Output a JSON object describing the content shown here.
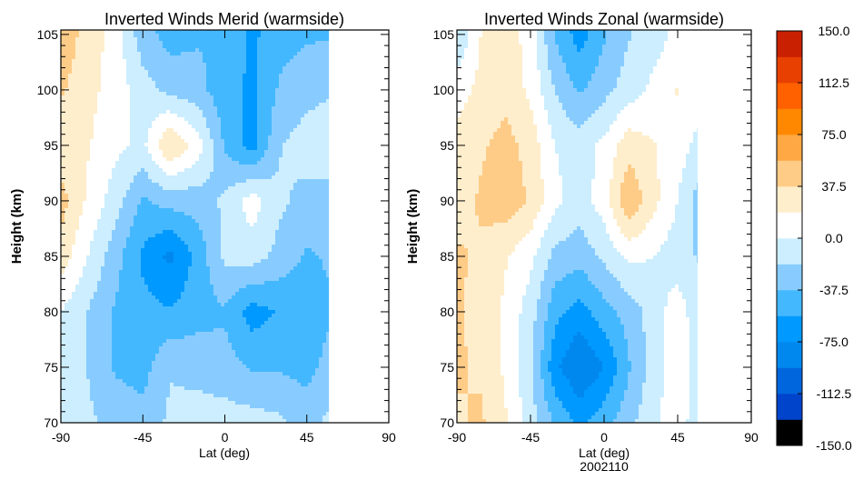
{
  "chart_data": [
    {
      "type": "heatmap",
      "title": "Inverted Winds Merid (warmside)",
      "xlabel": "Lat (deg)",
      "ylabel": "Height (km)",
      "xlim": [
        -90,
        90
      ],
      "ylim": [
        70,
        105.4
      ],
      "xticks": [
        "-90",
        "-45",
        "0",
        "45",
        "90"
      ],
      "yticks": [
        "70",
        "75",
        "80",
        "85",
        "90",
        "95",
        "100",
        "105"
      ],
      "lat": [
        -90,
        -75,
        -60,
        -45,
        -30,
        -15,
        0,
        15,
        30,
        45,
        57
      ],
      "height": [
        105,
        100,
        95,
        90,
        85,
        80,
        75,
        70
      ],
      "values": [
        [
          50,
          30,
          10,
          -30,
          -45,
          -40,
          -40,
          -60,
          -45,
          -40,
          -40
        ],
        [
          40,
          25,
          10,
          -10,
          -25,
          -30,
          -50,
          -60,
          -35,
          -25,
          -20
        ],
        [
          25,
          20,
          5,
          -5,
          40,
          10,
          -40,
          -65,
          -20,
          -10,
          -10
        ],
        [
          45,
          15,
          -10,
          -40,
          -30,
          -30,
          -15,
          10,
          -15,
          -25,
          -25
        ],
        [
          30,
          0,
          -30,
          -60,
          -80,
          -50,
          -15,
          -10,
          -25,
          -40,
          -35
        ],
        [
          0,
          -20,
          -40,
          -50,
          -55,
          -45,
          -40,
          -65,
          -55,
          -55,
          -40
        ],
        [
          -5,
          -20,
          -40,
          -45,
          -20,
          -25,
          -30,
          -40,
          -40,
          -45,
          -30
        ],
        [
          0,
          -15,
          -25,
          -30,
          -15,
          -10,
          -10,
          -10,
          -15,
          -25,
          -15
        ]
      ]
    },
    {
      "type": "heatmap",
      "title": "Inverted Winds Zonal (warmside)",
      "xlabel": "Lat (deg)",
      "ylabel": "Height (km)",
      "footnote": "2002110",
      "xlim": [
        -90,
        90
      ],
      "ylim": [
        70,
        105.4
      ],
      "xticks": [
        "-90",
        "-45",
        "0",
        "45",
        "90"
      ],
      "yticks": [
        "70",
        "75",
        "80",
        "85",
        "90",
        "95",
        "100",
        "105"
      ],
      "lat": [
        -90,
        -75,
        -60,
        -45,
        -30,
        -15,
        0,
        15,
        30,
        45,
        57
      ],
      "height": [
        105,
        100,
        95,
        90,
        85,
        80,
        75,
        70
      ],
      "values": [
        [
          -20,
          20,
          30,
          10,
          -40,
          -65,
          -40,
          -20,
          -10,
          5,
          10
        ],
        [
          10,
          25,
          30,
          15,
          -20,
          -40,
          -25,
          -10,
          5,
          20,
          10
        ],
        [
          25,
          35,
          45,
          30,
          0,
          -10,
          5,
          30,
          20,
          10,
          -5
        ],
        [
          30,
          40,
          50,
          35,
          5,
          -10,
          10,
          55,
          25,
          0,
          -25
        ],
        [
          40,
          35,
          20,
          5,
          -25,
          -30,
          -15,
          5,
          0,
          -10,
          -20
        ],
        [
          40,
          30,
          15,
          -10,
          -50,
          -65,
          -45,
          -30,
          -10,
          10,
          -10
        ],
        [
          40,
          35,
          15,
          -15,
          -70,
          -95,
          -75,
          -40,
          -10,
          15,
          -10
        ],
        [
          35,
          40,
          20,
          -10,
          -40,
          -60,
          -45,
          -25,
          -5,
          10,
          -10
        ]
      ]
    }
  ],
  "colorbar": {
    "min": -150,
    "max": 150,
    "labels": [
      "150.0",
      "112.5",
      "75.0",
      "37.5",
      "0.0",
      "-37.5",
      "-75.0",
      "-112.5",
      "-150.0"
    ],
    "colors": [
      "#000000",
      "#0044cc",
      "#0066dd",
      "#0088ee",
      "#0099ff",
      "#44b8ff",
      "#88ccff",
      "#cceeff",
      "#ffffff",
      "#ffeecc",
      "#ffcc88",
      "#ffa844",
      "#ff8800",
      "#ff6000",
      "#e84000",
      "#c82000"
    ]
  }
}
